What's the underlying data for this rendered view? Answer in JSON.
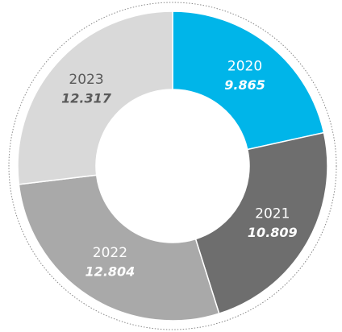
{
  "chart_data": {
    "type": "donut",
    "categories": [
      "2020",
      "2021",
      "2022",
      "2023"
    ],
    "values": [
      9.865,
      10.809,
      12.804,
      12.317
    ],
    "colors": [
      "#00b5e9",
      "#6e6e6e",
      "#a9a9a9",
      "#d9d9d9"
    ],
    "label_colors": [
      "#ffffff",
      "#ffffff",
      "#ffffff",
      "#5a5a5a"
    ]
  }
}
